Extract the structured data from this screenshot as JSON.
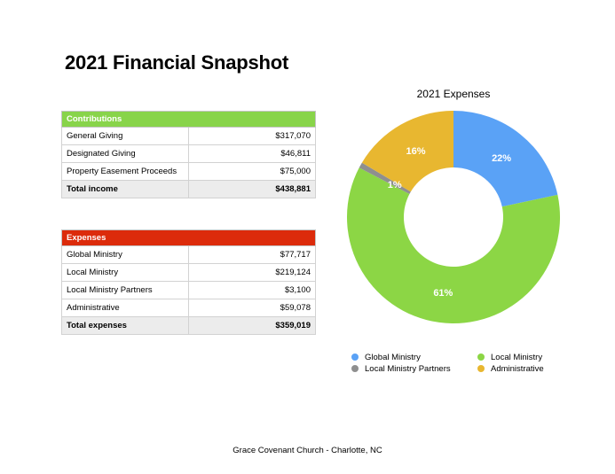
{
  "page": {
    "title": "2021 Financial Snapshot",
    "footer": "Grace Covenant Church - Charlotte, NC"
  },
  "contributions": {
    "header": "Contributions",
    "rows": [
      {
        "label": "General Giving",
        "amount": "$317,070"
      },
      {
        "label": "Designated Giving",
        "amount": "$46,811"
      },
      {
        "label": "Property Easement Proceeds",
        "amount": "$75,000"
      }
    ],
    "total_label": "Total income",
    "total_amount": "$438,881"
  },
  "expenses": {
    "header": "Expenses",
    "rows": [
      {
        "label": "Global Ministry",
        "amount": "$77,717"
      },
      {
        "label": "Local Ministry",
        "amount": "$219,124"
      },
      {
        "label": "Local Ministry Partners",
        "amount": "$3,100"
      },
      {
        "label": "Administrative",
        "amount": "$59,078"
      }
    ],
    "total_label": "Total expenses",
    "total_amount": "$359,019"
  },
  "colors": {
    "contributions_header": "#88d44a",
    "expenses_header": "#dc2b0b"
  },
  "chart_data": {
    "type": "pie",
    "title": "2021 Expenses",
    "donut": true,
    "categories": [
      "Global Ministry",
      "Local Ministry",
      "Local Ministry Partners",
      "Administrative"
    ],
    "values": [
      77717,
      219124,
      3100,
      59078
    ],
    "percent_labels": [
      "22%",
      "61%",
      "1%",
      "16%"
    ],
    "colors": [
      "#5aa2f6",
      "#8cd645",
      "#8f8f8f",
      "#e8b730"
    ],
    "legend_position": "bottom",
    "legend_order": [
      "Global Ministry",
      "Local Ministry",
      "Local Ministry Partners",
      "Administrative"
    ]
  }
}
